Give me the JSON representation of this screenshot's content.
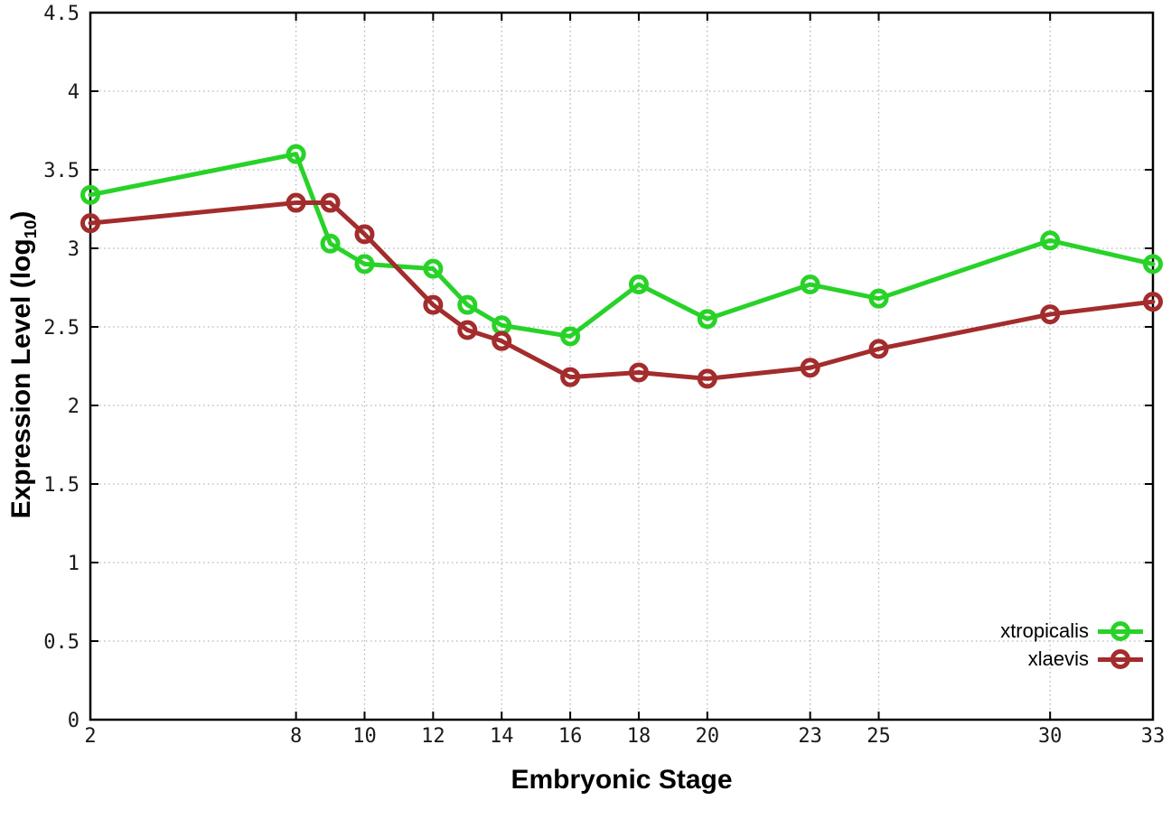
{
  "chart_data": {
    "type": "line",
    "title": "",
    "xlabel": "Embryonic Stage",
    "ylabel": "Expression Level (log10)",
    "ylabel_parts": {
      "main": "Expression Level (log",
      "sub": "10",
      "end": ")"
    },
    "xlim": [
      2,
      33
    ],
    "ylim": [
      0,
      4.5
    ],
    "xticks": [
      2,
      8,
      10,
      12,
      14,
      16,
      18,
      20,
      23,
      25,
      30,
      33
    ],
    "xtick_labels": [
      "2",
      "8",
      "10",
      "12",
      "14",
      "16",
      "18",
      "20",
      "23",
      "25",
      "30",
      "33"
    ],
    "yticks": [
      0,
      0.5,
      1,
      1.5,
      2,
      2.5,
      3,
      3.5,
      4,
      4.5
    ],
    "ytick_labels": [
      "0",
      "0.5",
      "1",
      "1.5",
      "2",
      "2.5",
      "3",
      "3.5",
      "4",
      "4.5"
    ],
    "grid": true,
    "grid_style": "dotted",
    "legend_position": "bottom-right",
    "background_color": "#ffffff",
    "border_color": "#000000",
    "grid_color": "#b5b5b5",
    "tick_label_color": "#1a1a1a",
    "series": [
      {
        "name": "xtropicalis",
        "color": "#28d228",
        "marker": "open-circle",
        "x": [
          2,
          8,
          9,
          10,
          12,
          13,
          14,
          16,
          18,
          20,
          23,
          25,
          30,
          33
        ],
        "y": [
          3.34,
          3.6,
          3.03,
          2.9,
          2.87,
          2.64,
          2.51,
          2.44,
          2.77,
          2.55,
          2.77,
          2.68,
          3.05,
          2.9
        ]
      },
      {
        "name": "xlaevis",
        "color": "#a32c2c",
        "marker": "open-circle",
        "x": [
          2,
          8,
          9,
          10,
          12,
          13,
          14,
          16,
          18,
          20,
          23,
          25,
          30,
          33
        ],
        "y": [
          3.16,
          3.29,
          3.29,
          3.09,
          2.64,
          2.48,
          2.41,
          2.18,
          2.21,
          2.17,
          2.24,
          2.36,
          2.58,
          2.66
        ]
      }
    ]
  }
}
